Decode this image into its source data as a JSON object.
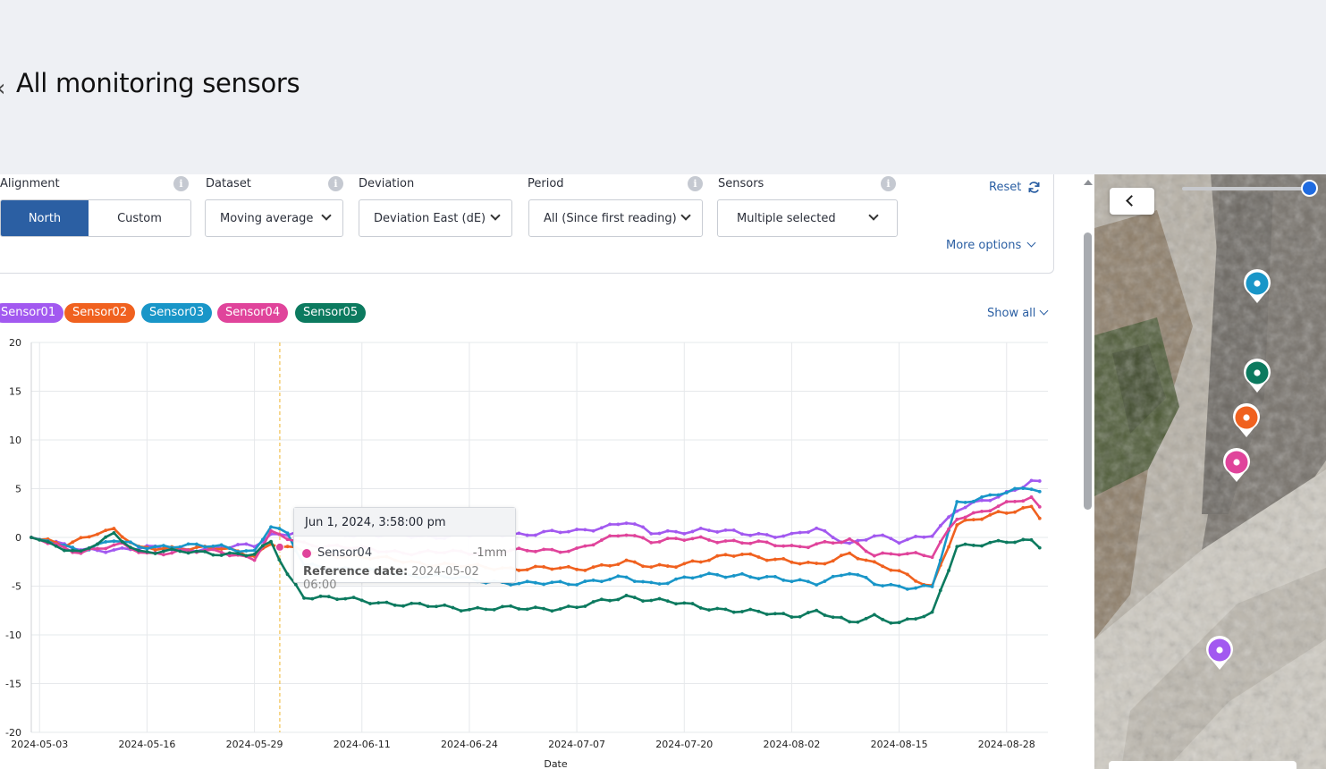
{
  "page": {
    "title": "All monitoring sensors"
  },
  "filters": {
    "alignment": {
      "label": "Alignment",
      "options": [
        "North",
        "Custom"
      ],
      "selected": "North"
    },
    "dataset": {
      "label": "Dataset",
      "value": "Moving average"
    },
    "deviation": {
      "label": "Deviation",
      "value": "Deviation East (dE)"
    },
    "period": {
      "label": "Period",
      "value": "All (Since first reading)"
    },
    "sensors": {
      "label": "Sensors",
      "value": "Multiple selected"
    },
    "reset_label": "Reset",
    "more_options_label": "More options",
    "info_glyph": "i"
  },
  "legend": {
    "chips": [
      "Sensor01",
      "Sensor02",
      "Sensor03",
      "Sensor04",
      "Sensor05"
    ],
    "show_all_label": "Show all"
  },
  "tooltip": {
    "title": "Jun 1, 2024, 3:58:00 pm",
    "sensor": "Sensor04",
    "value": "-1mm",
    "ref_label": "Reference date:",
    "ref_value": "2024-05-02 06:00"
  },
  "colors": {
    "Sensor01": "#a259f0",
    "Sensor02": "#f0611f",
    "Sensor03": "#1996c8",
    "Sensor04": "#e0449b",
    "Sensor05": "#0c7a5f",
    "accent": "#2b5fa3",
    "crosshair": "#f2c14e"
  },
  "map": {
    "pins": [
      {
        "sensor": "Sensor03",
        "icon": "map-pin-icon"
      },
      {
        "sensor": "Sensor05",
        "icon": "map-pin-icon"
      },
      {
        "sensor": "Sensor02",
        "icon": "map-pin-icon"
      },
      {
        "sensor": "Sensor04",
        "icon": "map-pin-icon"
      },
      {
        "sensor": "Sensor01",
        "icon": "map-pin-icon"
      }
    ],
    "opacity_slider": 0.96
  },
  "chart_data": {
    "type": "line",
    "xlabel": "Date",
    "ylabel": "",
    "ylim": [
      -20,
      20
    ],
    "yticks": [
      20,
      15,
      10,
      5,
      0,
      -5,
      -10,
      -15,
      -20
    ],
    "xticks": [
      "2024-05-03",
      "2024-05-16",
      "2024-05-29",
      "2024-06-11",
      "2024-06-24",
      "2024-07-07",
      "2024-07-20",
      "2024-08-02",
      "2024-08-15",
      "2024-08-28"
    ],
    "xrange": [
      "2024-05-02",
      "2024-09-02"
    ],
    "grid": true,
    "crosshair_date": "2024-06-01",
    "series": [
      {
        "name": "Sensor01",
        "keys": [
          [
            "2024-05-02",
            0
          ],
          [
            "2024-05-08",
            -1.3
          ],
          [
            "2024-05-13",
            -1.2
          ],
          [
            "2024-05-16",
            -1.1
          ],
          [
            "2024-05-20",
            -1.2
          ],
          [
            "2024-05-25",
            -1.1
          ],
          [
            "2024-05-29",
            -0.8
          ],
          [
            "2024-05-31",
            0.3
          ],
          [
            "2024-06-04",
            0.6
          ],
          [
            "2024-06-11",
            0.3
          ],
          [
            "2024-06-18",
            0.1
          ],
          [
            "2024-06-24",
            0.2
          ],
          [
            "2024-07-01",
            0.4
          ],
          [
            "2024-07-07",
            0.6
          ],
          [
            "2024-07-13",
            1.6
          ],
          [
            "2024-07-16",
            0.4
          ],
          [
            "2024-07-22",
            0.8
          ],
          [
            "2024-07-27",
            0.4
          ],
          [
            "2024-08-02",
            0.2
          ],
          [
            "2024-08-05",
            0.8
          ],
          [
            "2024-08-09",
            -0.6
          ],
          [
            "2024-08-12",
            0.2
          ],
          [
            "2024-08-15",
            -0.5
          ],
          [
            "2024-08-19",
            0.4
          ],
          [
            "2024-08-22",
            2.8
          ],
          [
            "2024-08-27",
            4.2
          ],
          [
            "2024-08-31",
            5.8
          ],
          [
            "2024-09-01",
            5.6
          ]
        ]
      },
      {
        "name": "Sensor02",
        "keys": [
          [
            "2024-05-02",
            0
          ],
          [
            "2024-05-06",
            -0.9
          ],
          [
            "2024-05-10",
            0.6
          ],
          [
            "2024-05-12",
            0.8
          ],
          [
            "2024-05-15",
            -1.2
          ],
          [
            "2024-05-20",
            -1.0
          ],
          [
            "2024-05-25",
            -1.2
          ],
          [
            "2024-05-29",
            -1.8
          ],
          [
            "2024-05-31",
            -0.6
          ],
          [
            "2024-06-04",
            -1.5
          ],
          [
            "2024-06-11",
            -2.0
          ],
          [
            "2024-06-18",
            -2.6
          ],
          [
            "2024-06-24",
            -3.0
          ],
          [
            "2024-07-01",
            -3.2
          ],
          [
            "2024-07-07",
            -3.2
          ],
          [
            "2024-07-13",
            -2.6
          ],
          [
            "2024-07-16",
            -3.0
          ],
          [
            "2024-07-22",
            -2.5
          ],
          [
            "2024-07-27",
            -1.6
          ],
          [
            "2024-08-02",
            -2.6
          ],
          [
            "2024-08-05",
            -2.8
          ],
          [
            "2024-08-09",
            -1.6
          ],
          [
            "2024-08-12",
            -2.8
          ],
          [
            "2024-08-15",
            -3.5
          ],
          [
            "2024-08-19",
            -5.0
          ],
          [
            "2024-08-22",
            1.2
          ],
          [
            "2024-08-27",
            2.6
          ],
          [
            "2024-08-31",
            3.0
          ],
          [
            "2024-09-01",
            2.0
          ]
        ]
      },
      {
        "name": "Sensor03",
        "keys": [
          [
            "2024-05-02",
            0
          ],
          [
            "2024-05-08",
            -1.3
          ],
          [
            "2024-05-12",
            -0.3
          ],
          [
            "2024-05-15",
            -1.0
          ],
          [
            "2024-05-20",
            -0.8
          ],
          [
            "2024-05-25",
            -1.0
          ],
          [
            "2024-05-29",
            -1.4
          ],
          [
            "2024-05-31",
            1.2
          ],
          [
            "2024-06-02",
            0.2
          ],
          [
            "2024-06-04",
            -2.8
          ],
          [
            "2024-06-11",
            -3.4
          ],
          [
            "2024-06-18",
            -3.9
          ],
          [
            "2024-06-24",
            -4.3
          ],
          [
            "2024-07-01",
            -4.8
          ],
          [
            "2024-07-07",
            -4.6
          ],
          [
            "2024-07-13",
            -4.2
          ],
          [
            "2024-07-16",
            -4.7
          ],
          [
            "2024-07-22",
            -4.0
          ],
          [
            "2024-07-27",
            -3.8
          ],
          [
            "2024-08-02",
            -4.5
          ],
          [
            "2024-08-05",
            -4.6
          ],
          [
            "2024-08-09",
            -3.6
          ],
          [
            "2024-08-12",
            -4.8
          ],
          [
            "2024-08-15",
            -5.0
          ],
          [
            "2024-08-19",
            -5.1
          ],
          [
            "2024-08-22",
            3.4
          ],
          [
            "2024-08-27",
            4.6
          ],
          [
            "2024-08-31",
            5.0
          ],
          [
            "2024-09-01",
            4.6
          ]
        ]
      },
      {
        "name": "Sensor04",
        "keys": [
          [
            "2024-05-02",
            0
          ],
          [
            "2024-05-08",
            -1.5
          ],
          [
            "2024-05-13",
            -0.8
          ],
          [
            "2024-05-16",
            -1.6
          ],
          [
            "2024-05-20",
            -1.5
          ],
          [
            "2024-05-25",
            -1.4
          ],
          [
            "2024-05-29",
            -2.2
          ],
          [
            "2024-05-31",
            0.4
          ],
          [
            "2024-06-04",
            -0.6
          ],
          [
            "2024-06-11",
            -1.2
          ],
          [
            "2024-06-18",
            -1.6
          ],
          [
            "2024-06-24",
            -1.5
          ],
          [
            "2024-07-01",
            -1.4
          ],
          [
            "2024-07-07",
            -1.2
          ],
          [
            "2024-07-13",
            0.4
          ],
          [
            "2024-07-16",
            -0.3
          ],
          [
            "2024-07-22",
            -0.2
          ],
          [
            "2024-07-27",
            -0.4
          ],
          [
            "2024-08-02",
            -1.0
          ],
          [
            "2024-08-05",
            -0.6
          ],
          [
            "2024-08-09",
            -0.4
          ],
          [
            "2024-08-12",
            -1.8
          ],
          [
            "2024-08-15",
            -1.5
          ],
          [
            "2024-08-19",
            -2.0
          ],
          [
            "2024-08-22",
            2.0
          ],
          [
            "2024-08-27",
            3.2
          ],
          [
            "2024-08-31",
            4.0
          ],
          [
            "2024-09-01",
            3.0
          ]
        ]
      },
      {
        "name": "Sensor05",
        "keys": [
          [
            "2024-05-02",
            0
          ],
          [
            "2024-05-08",
            -1.6
          ],
          [
            "2024-05-12",
            0.3
          ],
          [
            "2024-05-15",
            -1.4
          ],
          [
            "2024-05-20",
            -1.5
          ],
          [
            "2024-05-25",
            -1.6
          ],
          [
            "2024-05-29",
            -1.8
          ],
          [
            "2024-05-31",
            -0.5
          ],
          [
            "2024-06-02",
            -3.8
          ],
          [
            "2024-06-04",
            -6.0
          ],
          [
            "2024-06-11",
            -6.5
          ],
          [
            "2024-06-18",
            -7.0
          ],
          [
            "2024-06-24",
            -7.3
          ],
          [
            "2024-07-01",
            -7.3
          ],
          [
            "2024-07-07",
            -7.2
          ],
          [
            "2024-07-13",
            -6.0
          ],
          [
            "2024-07-16",
            -6.4
          ],
          [
            "2024-07-22",
            -7.1
          ],
          [
            "2024-07-27",
            -7.6
          ],
          [
            "2024-08-02",
            -8.0
          ],
          [
            "2024-08-05",
            -7.6
          ],
          [
            "2024-08-09",
            -8.8
          ],
          [
            "2024-08-12",
            -8.0
          ],
          [
            "2024-08-15",
            -8.8
          ],
          [
            "2024-08-19",
            -7.9
          ],
          [
            "2024-08-22",
            -0.8
          ],
          [
            "2024-08-27",
            -0.6
          ],
          [
            "2024-08-31",
            -0.3
          ],
          [
            "2024-09-01",
            -0.8
          ]
        ]
      }
    ]
  }
}
